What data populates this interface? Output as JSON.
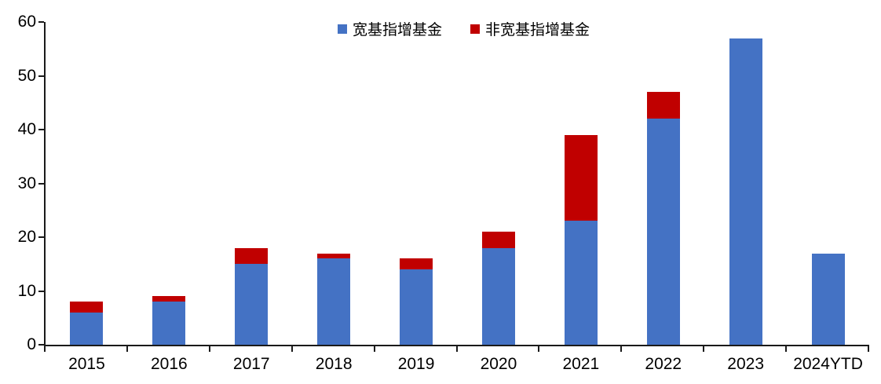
{
  "chart_data": {
    "type": "bar",
    "stacked": true,
    "title": "",
    "xlabel": "",
    "ylabel": "",
    "categories": [
      "2015",
      "2016",
      "2017",
      "2018",
      "2019",
      "2020",
      "2021",
      "2022",
      "2023",
      "2024YTD"
    ],
    "series": [
      {
        "name": "宽基指增基金",
        "color": "#4472C4",
        "values": [
          6,
          8,
          15,
          16,
          14,
          18,
          23,
          42,
          57,
          17
        ]
      },
      {
        "name": "非宽基指增基金",
        "color": "#C00000",
        "values": [
          2,
          1,
          3,
          1,
          2,
          3,
          16,
          5,
          0,
          0
        ]
      }
    ],
    "totals": [
      8,
      9,
      18,
      17,
      16,
      21,
      39,
      47,
      57,
      17
    ],
    "ylim": [
      0,
      60
    ],
    "ytick_step": 10,
    "ytick_labels": [
      "0",
      "10",
      "20",
      "30",
      "40",
      "50",
      "60"
    ],
    "grid": false,
    "legend_position": "top-center",
    "axis_color": "#1a1a1a",
    "background_color": "#ffffff"
  }
}
